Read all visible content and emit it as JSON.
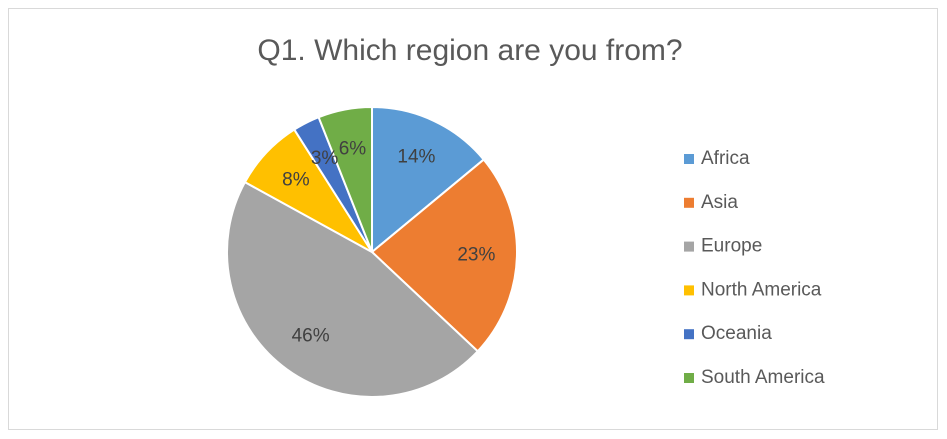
{
  "chart_data": {
    "type": "pie",
    "title": "Q1. Which region are you from?",
    "categories": [
      "Africa",
      "Asia",
      "Europe",
      "North America",
      "Oceania",
      "South America"
    ],
    "values": [
      14,
      23,
      46,
      8,
      3,
      6
    ],
    "value_labels": [
      "14%",
      "23%",
      "46%",
      "8%",
      "3%",
      "6%"
    ],
    "colors": [
      "#5b9bd5",
      "#ed7d31",
      "#a5a5a5",
      "#ffc000",
      "#4472c4",
      "#70ad47"
    ],
    "legend": "right"
  }
}
